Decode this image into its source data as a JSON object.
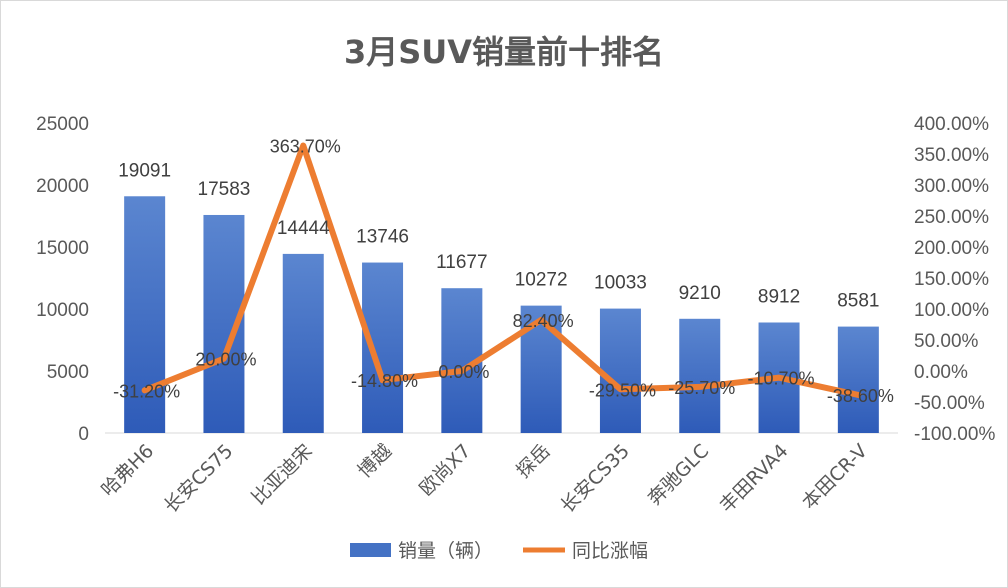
{
  "chart_data": {
    "type": "bar",
    "title": "3月SUV销量前十排名",
    "categories": [
      "哈弗H6",
      "长安CS75",
      "比亚迪宋",
      "博越",
      "欧尚X7",
      "探岳",
      "长安CS35",
      "奔驰GLC",
      "丰田RVA4",
      "本田CR-V"
    ],
    "series": [
      {
        "name": "销量（辆）",
        "type": "bar",
        "axis": "left",
        "color": "#4472C4",
        "values": [
          19091,
          17583,
          14444,
          13746,
          11677,
          10272,
          10033,
          9210,
          8912,
          8581
        ],
        "labels": [
          "19091",
          "17583",
          "14444",
          "13746",
          "11677",
          "10272",
          "10033",
          "9210",
          "8912",
          "8581"
        ]
      },
      {
        "name": "同比涨幅",
        "type": "line",
        "axis": "right",
        "color": "#ED7D31",
        "values": [
          -31.2,
          20.0,
          363.7,
          -14.8,
          0.0,
          82.4,
          -29.5,
          -25.7,
          -10.7,
          -38.6
        ],
        "labels": [
          "-31.20%",
          "20.00%",
          "363.70%",
          "-14.80%",
          "0.00%",
          "82.40%",
          "-29.50%",
          "-25.70%",
          "-10.70%",
          "-38.60%"
        ]
      }
    ],
    "y_left": {
      "ylim": [
        0,
        25000
      ],
      "ticks": [
        "0",
        "5000",
        "10000",
        "15000",
        "20000",
        "25000"
      ]
    },
    "y_right": {
      "ylim": [
        -100,
        400
      ],
      "ticks": [
        "-100.00%",
        "-50.00%",
        "0.00%",
        "50.00%",
        "100.00%",
        "150.00%",
        "200.00%",
        "250.00%",
        "300.00%",
        "350.00%",
        "400.00%"
      ]
    },
    "grid": false,
    "legend": "bottom"
  }
}
